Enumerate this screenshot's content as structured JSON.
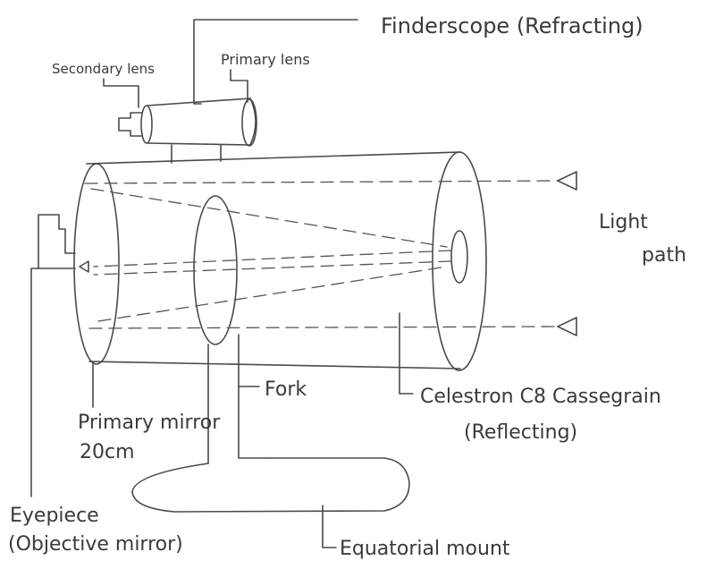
{
  "labels": {
    "finderscope": "Finderscope (Refracting)",
    "secondary_lens": "Secondary lens",
    "primary_lens": "Primary lens",
    "light_path_line1": "Light",
    "light_path_line2": "path",
    "fork": "Fork",
    "celestron_line1": "Celestron C8 Cassegrain",
    "celestron_line2": "(Reflecting)",
    "primary_mirror_line1": "Primary mirror",
    "primary_mirror_line2": "20cm",
    "eyepiece_line1": "Eyepiece",
    "eyepiece_line2": "(Objective mirror)",
    "equatorial_mount": "Equatorial mount"
  }
}
